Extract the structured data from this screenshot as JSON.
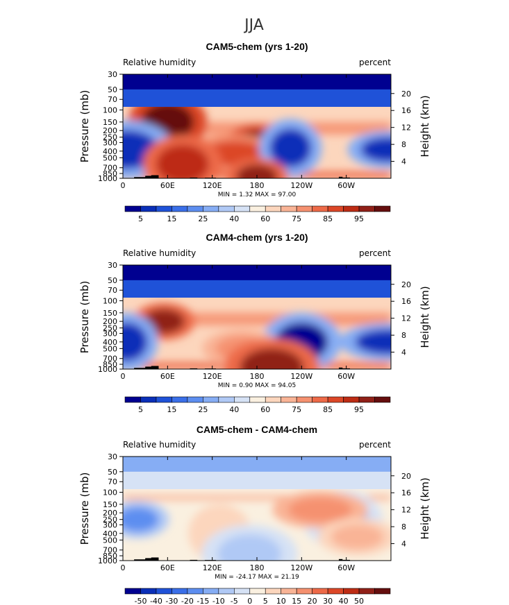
{
  "figure": {
    "main_title": "JJA"
  },
  "chart_data": [
    {
      "type": "heatmap",
      "title": "CAM5-chem (yrs 1-20)",
      "left_label": "Relative humidity",
      "right_label": "percent",
      "ylabel": "Pressure (mb)",
      "ylabel_right": "Height (km)",
      "x_ticks": [
        "0",
        "60E",
        "120E",
        "180",
        "120W",
        "60W"
      ],
      "x_tick_lon": [
        0,
        60,
        120,
        180,
        240,
        300
      ],
      "xlim": [
        0,
        360
      ],
      "y_ticks": [
        "30",
        "50",
        "70",
        "100",
        "150",
        "200",
        "250",
        "300",
        "400",
        "500",
        "700",
        "850",
        "1000"
      ],
      "y_tick_p": [
        30,
        50,
        70,
        100,
        150,
        200,
        250,
        300,
        400,
        500,
        700,
        850,
        1000
      ],
      "ylim": [
        1000,
        30
      ],
      "height_ticks": [
        "20",
        "16",
        "12",
        "8",
        "4"
      ],
      "height_tick_km": [
        20,
        16,
        12,
        8,
        4
      ],
      "stats": "MIN =     1.32   MAX =    97.00",
      "min": 1.32,
      "max": 97.0,
      "colorbar_labels": [
        "5",
        "15",
        "25",
        "40",
        "60",
        "75",
        "85",
        "95"
      ],
      "colorbar_colors": [
        "#000090",
        "#0a2fb8",
        "#1f52d8",
        "#3a6fe8",
        "#5d8ef0",
        "#86adf4",
        "#b0c9f5",
        "#d6e2f5",
        "#faf0e0",
        "#fcd6bd",
        "#f9b496",
        "#f59170",
        "#ed6a48",
        "#dc4727",
        "#bd2c14",
        "#902018",
        "#650e0e"
      ],
      "fields": [
        {
          "lon": 180,
          "p": 310,
          "value": 97
        },
        {
          "lon": 60,
          "p": 150,
          "value": 95
        },
        {
          "lon": 150,
          "p": 430,
          "value": 80
        },
        {
          "lon": 225,
          "p": 360,
          "value": 8
        },
        {
          "lon": 355,
          "p": 380,
          "value": 10
        },
        {
          "lon": 5,
          "p": 380,
          "value": 10
        },
        {
          "lon": 180,
          "p": 950,
          "value": 92
        },
        {
          "lon": 80,
          "p": 620,
          "value": 85
        }
      ]
    },
    {
      "type": "heatmap",
      "title": "CAM4-chem (yrs 1-20)",
      "left_label": "Relative humidity",
      "right_label": "percent",
      "ylabel": "Pressure (mb)",
      "ylabel_right": "Height (km)",
      "x_ticks": [
        "0",
        "60E",
        "120E",
        "180",
        "120W",
        "60W"
      ],
      "x_tick_lon": [
        0,
        60,
        120,
        180,
        240,
        300
      ],
      "xlim": [
        0,
        360
      ],
      "y_ticks": [
        "30",
        "50",
        "70",
        "100",
        "150",
        "200",
        "250",
        "300",
        "400",
        "500",
        "700",
        "850",
        "1000"
      ],
      "y_tick_p": [
        30,
        50,
        70,
        100,
        150,
        200,
        250,
        300,
        400,
        500,
        700,
        850,
        1000
      ],
      "ylim": [
        1000,
        30
      ],
      "height_ticks": [
        "20",
        "16",
        "12",
        "8",
        "4"
      ],
      "height_tick_km": [
        20,
        16,
        12,
        8,
        4
      ],
      "stats": "MIN =     0.90   MAX =    94.05",
      "min": 0.9,
      "max": 94.05,
      "colorbar_labels": [
        "5",
        "15",
        "25",
        "40",
        "60",
        "75",
        "85",
        "95"
      ],
      "colorbar_colors": [
        "#000090",
        "#0a2fb8",
        "#1f52d8",
        "#3a6fe8",
        "#5d8ef0",
        "#86adf4",
        "#b0c9f5",
        "#d6e2f5",
        "#faf0e0",
        "#fcd6bd",
        "#f9b496",
        "#f59170",
        "#ed6a48",
        "#dc4727",
        "#bd2c14",
        "#902018",
        "#650e0e"
      ],
      "fields": [
        {
          "lon": 55,
          "p": 200,
          "value": 94
        },
        {
          "lon": 240,
          "p": 400,
          "value": 5
        },
        {
          "lon": 355,
          "p": 400,
          "value": 10
        },
        {
          "lon": 5,
          "p": 400,
          "value": 10
        },
        {
          "lon": 160,
          "p": 500,
          "value": 70
        },
        {
          "lon": 200,
          "p": 950,
          "value": 90
        }
      ]
    },
    {
      "type": "heatmap",
      "title": "CAM5-chem - CAM4-chem",
      "left_label": "Relative humidity",
      "right_label": "percent",
      "ylabel": "Pressure (mb)",
      "ylabel_right": "Height (km)",
      "x_ticks": [
        "0",
        "60E",
        "120E",
        "180",
        "120W",
        "60W"
      ],
      "x_tick_lon": [
        0,
        60,
        120,
        180,
        240,
        300
      ],
      "xlim": [
        0,
        360
      ],
      "y_ticks": [
        "30",
        "50",
        "70",
        "100",
        "150",
        "200",
        "250",
        "300",
        "400",
        "500",
        "700",
        "850",
        "1000"
      ],
      "y_tick_p": [
        30,
        50,
        70,
        100,
        150,
        200,
        250,
        300,
        400,
        500,
        700,
        850,
        1000
      ],
      "ylim": [
        1000,
        30
      ],
      "height_ticks": [
        "20",
        "16",
        "12",
        "8",
        "4"
      ],
      "height_tick_km": [
        20,
        16,
        12,
        8,
        4
      ],
      "stats": "MIN =  -24.17   MAX =    21.19",
      "min": -24.17,
      "max": 21.19,
      "colorbar_labels": [
        "-50",
        "-40",
        "-30",
        "-20",
        "-15",
        "-10",
        "-5",
        "0",
        "5",
        "10",
        "15",
        "20",
        "30",
        "40",
        "50"
      ],
      "colorbar_colors": [
        "#000090",
        "#0a2fb8",
        "#1f52d8",
        "#3a6fe8",
        "#5d8ef0",
        "#86adf4",
        "#b0c9f5",
        "#d6e2f5",
        "#faf0e0",
        "#fcd6bd",
        "#f9b496",
        "#f59170",
        "#ed6a48",
        "#dc4727",
        "#bd2c14",
        "#902018",
        "#650e0e"
      ],
      "fields": [
        {
          "lon": 20,
          "p": 250,
          "value": -24
        },
        {
          "lon": 295,
          "p": 250,
          "value": -20
        },
        {
          "lon": 265,
          "p": 180,
          "value": 21
        },
        {
          "lon": 130,
          "p": 400,
          "value": 8
        },
        {
          "lon": 315,
          "p": 450,
          "value": 10
        },
        {
          "lon": 170,
          "p": 800,
          "value": -10
        }
      ]
    }
  ]
}
